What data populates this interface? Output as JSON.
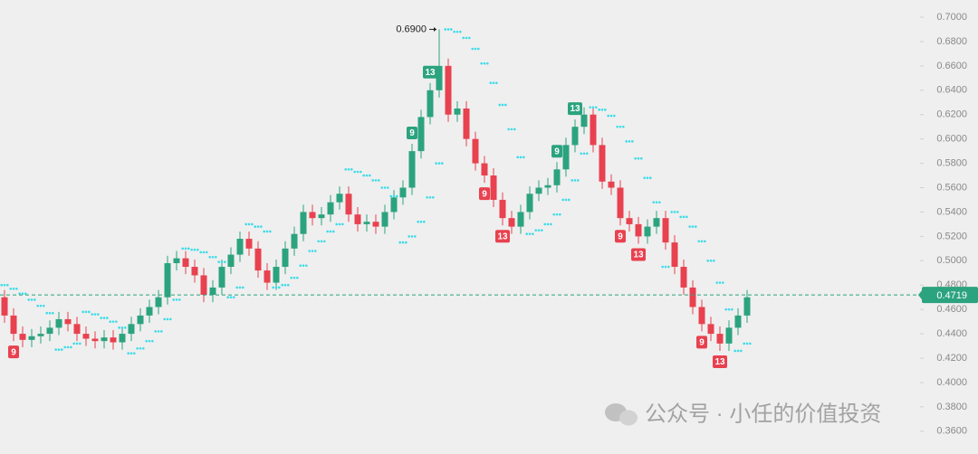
{
  "chart_data": {
    "type": "candlestick",
    "up_color": "#2ba37e",
    "down_color": "#e8414f",
    "sar_color": "#3ddbe8",
    "open": [
      0.47,
      0.455,
      0.44,
      0.435,
      0.438,
      0.44,
      0.445,
      0.452,
      0.448,
      0.44,
      0.436,
      0.434,
      0.437,
      0.433,
      0.44,
      0.448,
      0.455,
      0.462,
      0.47,
      0.498,
      0.502,
      0.495,
      0.488,
      0.472,
      0.478,
      0.495,
      0.505,
      0.518,
      0.51,
      0.492,
      0.482,
      0.495,
      0.51,
      0.522,
      0.54,
      0.535,
      0.538,
      0.548,
      0.555,
      0.538,
      0.53,
      0.532,
      0.528,
      0.54,
      0.552,
      0.56,
      0.59,
      0.618,
      0.64,
      0.66,
      0.62,
      0.625,
      0.6,
      0.58,
      0.57,
      0.55,
      0.535,
      0.528,
      0.54,
      0.555,
      0.56,
      0.562,
      0.575,
      0.595,
      0.61,
      0.62,
      0.595,
      0.565,
      0.56,
      0.535,
      0.53,
      0.52,
      0.528,
      0.535,
      0.515,
      0.495,
      0.478,
      0.462,
      0.448,
      0.44,
      0.432,
      0.445,
      0.455
    ],
    "high": [
      0.476,
      0.461,
      0.446,
      0.444,
      0.446,
      0.451,
      0.458,
      0.458,
      0.454,
      0.446,
      0.442,
      0.443,
      0.443,
      0.446,
      0.454,
      0.461,
      0.468,
      0.476,
      0.504,
      0.508,
      0.508,
      0.501,
      0.494,
      0.484,
      0.501,
      0.511,
      0.524,
      0.524,
      0.516,
      0.498,
      0.501,
      0.516,
      0.528,
      0.546,
      0.546,
      0.544,
      0.554,
      0.561,
      0.561,
      0.544,
      0.538,
      0.538,
      0.546,
      0.558,
      0.566,
      0.596,
      0.624,
      0.646,
      0.69,
      0.666,
      0.631,
      0.631,
      0.606,
      0.586,
      0.576,
      0.556,
      0.541,
      0.546,
      0.561,
      0.566,
      0.568,
      0.581,
      0.601,
      0.616,
      0.626,
      0.626,
      0.601,
      0.571,
      0.566,
      0.541,
      0.536,
      0.534,
      0.541,
      0.541,
      0.521,
      0.501,
      0.484,
      0.468,
      0.454,
      0.446,
      0.451,
      0.461,
      0.476
    ],
    "low": [
      0.449,
      0.434,
      0.429,
      0.429,
      0.432,
      0.434,
      0.439,
      0.442,
      0.434,
      0.43,
      0.428,
      0.428,
      0.427,
      0.427,
      0.434,
      0.442,
      0.449,
      0.456,
      0.464,
      0.492,
      0.489,
      0.482,
      0.466,
      0.466,
      0.472,
      0.489,
      0.499,
      0.504,
      0.486,
      0.476,
      0.476,
      0.489,
      0.504,
      0.516,
      0.529,
      0.529,
      0.532,
      0.542,
      0.532,
      0.524,
      0.524,
      0.522,
      0.522,
      0.534,
      0.546,
      0.554,
      0.584,
      0.612,
      0.634,
      0.614,
      0.614,
      0.594,
      0.574,
      0.564,
      0.544,
      0.529,
      0.522,
      0.522,
      0.534,
      0.549,
      0.554,
      0.556,
      0.569,
      0.589,
      0.604,
      0.589,
      0.559,
      0.554,
      0.529,
      0.524,
      0.514,
      0.514,
      0.522,
      0.509,
      0.489,
      0.472,
      0.456,
      0.442,
      0.434,
      0.426,
      0.426,
      0.439,
      0.449
    ],
    "close": [
      0.455,
      0.44,
      0.435,
      0.438,
      0.44,
      0.445,
      0.452,
      0.448,
      0.44,
      0.436,
      0.434,
      0.437,
      0.433,
      0.44,
      0.448,
      0.455,
      0.462,
      0.47,
      0.498,
      0.502,
      0.495,
      0.488,
      0.472,
      0.478,
      0.495,
      0.505,
      0.518,
      0.51,
      0.492,
      0.482,
      0.495,
      0.51,
      0.522,
      0.54,
      0.535,
      0.538,
      0.548,
      0.555,
      0.538,
      0.53,
      0.532,
      0.528,
      0.54,
      0.552,
      0.56,
      0.59,
      0.618,
      0.64,
      0.66,
      0.62,
      0.625,
      0.6,
      0.58,
      0.57,
      0.55,
      0.535,
      0.528,
      0.54,
      0.555,
      0.56,
      0.562,
      0.575,
      0.595,
      0.61,
      0.62,
      0.595,
      0.565,
      0.56,
      0.535,
      0.53,
      0.52,
      0.528,
      0.535,
      0.515,
      0.495,
      0.478,
      0.462,
      0.448,
      0.44,
      0.432,
      0.445,
      0.455,
      0.47
    ],
    "sar": [
      0.48,
      0.477,
      0.473,
      0.468,
      0.463,
      0.457,
      0.427,
      0.429,
      0.432,
      0.458,
      0.456,
      0.453,
      0.45,
      0.445,
      0.424,
      0.428,
      0.434,
      0.442,
      0.452,
      0.468,
      0.51,
      0.509,
      0.507,
      0.503,
      0.499,
      0.47,
      0.478,
      0.53,
      0.528,
      0.524,
      0.478,
      0.48,
      0.486,
      0.496,
      0.508,
      0.516,
      0.524,
      0.53,
      0.575,
      0.573,
      0.57,
      0.566,
      0.56,
      0.553,
      0.515,
      0.52,
      0.532,
      0.552,
      0.58,
      0.69,
      0.688,
      0.683,
      0.674,
      0.662,
      0.646,
      0.628,
      0.608,
      0.585,
      0.522,
      0.525,
      0.53,
      0.538,
      0.55,
      0.566,
      0.588,
      0.626,
      0.624,
      0.619,
      0.61,
      0.598,
      0.584,
      0.568,
      0.548,
      0.495,
      0.54,
      0.536,
      0.528,
      0.516,
      0.5,
      0.482,
      0.46,
      0.426,
      0.432
    ],
    "td_labels": [
      {
        "index": 1,
        "label": "9",
        "kind": "down"
      },
      {
        "index": 45,
        "label": "9",
        "kind": "up"
      },
      {
        "index": 47,
        "label": "13",
        "kind": "up"
      },
      {
        "index": 53,
        "label": "9",
        "kind": "down"
      },
      {
        "index": 55,
        "label": "13",
        "kind": "down"
      },
      {
        "index": 61,
        "label": "9",
        "kind": "up"
      },
      {
        "index": 63,
        "label": "13",
        "kind": "up"
      },
      {
        "index": 68,
        "label": "9",
        "kind": "down"
      },
      {
        "index": 70,
        "label": "13",
        "kind": "down"
      },
      {
        "index": 77,
        "label": "9",
        "kind": "down"
      },
      {
        "index": 79,
        "label": "13",
        "kind": "down"
      }
    ],
    "max_label": {
      "value": 0.69,
      "label": "0.6900"
    },
    "last_price": {
      "value": 0.4719,
      "label": "0.4719"
    },
    "ylim": [
      0.3413,
      0.7141
    ],
    "yticks": [
      {
        "value": 0.7,
        "label": "0.7000"
      },
      {
        "value": 0.68,
        "label": "0.6800"
      },
      {
        "value": 0.66,
        "label": "0.6600"
      },
      {
        "value": 0.64,
        "label": "0.6400"
      },
      {
        "value": 0.62,
        "label": "0.6200"
      },
      {
        "value": 0.6,
        "label": "0.6000"
      },
      {
        "value": 0.58,
        "label": "0.5800"
      },
      {
        "value": 0.56,
        "label": "0.5600"
      },
      {
        "value": 0.54,
        "label": "0.5400"
      },
      {
        "value": 0.52,
        "label": "0.5200"
      },
      {
        "value": 0.5,
        "label": "0.5000"
      },
      {
        "value": 0.48,
        "label": "0.4800"
      },
      {
        "value": 0.46,
        "label": "0.4600"
      },
      {
        "value": 0.44,
        "label": "0.4400"
      },
      {
        "value": 0.42,
        "label": "0.4200"
      },
      {
        "value": 0.4,
        "label": "0.4000"
      },
      {
        "value": 0.38,
        "label": "0.3800"
      },
      {
        "value": 0.36,
        "label": "0.3600"
      }
    ]
  },
  "watermark": "公众号 · 小任的价值投资"
}
